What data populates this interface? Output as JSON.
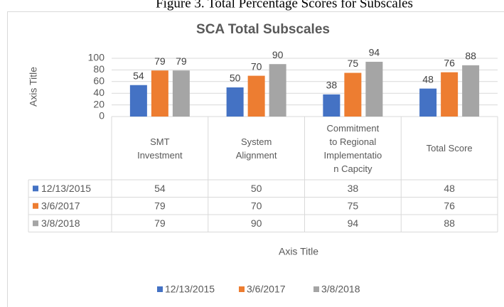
{
  "caption": "Figure 3. Total Percentage Scores for Subscales",
  "chart_data": {
    "type": "bar",
    "title": "SCA Total Subscales",
    "x_axis_title": "Axis Title",
    "y_axis_title": "Axis Title",
    "categories": [
      "SMT\nInvestment",
      "System\nAlignment",
      "Commitment\nto Regional\nImplementatio\nn Capcity",
      "Total Score"
    ],
    "series": [
      {
        "name": "12/13/2015",
        "color": "#4472c4",
        "values": [
          54,
          50,
          38,
          48
        ]
      },
      {
        "name": "3/6/2017",
        "color": "#ed7d31",
        "values": [
          79,
          70,
          75,
          76
        ]
      },
      {
        "name": "3/8/2018",
        "color": "#a5a5a5",
        "values": [
          79,
          90,
          94,
          88
        ]
      }
    ],
    "ylim": [
      0,
      100
    ],
    "yticks": [
      0,
      20,
      40,
      60,
      80,
      100
    ],
    "grid": true,
    "data_table": true,
    "legend": "bottom"
  }
}
